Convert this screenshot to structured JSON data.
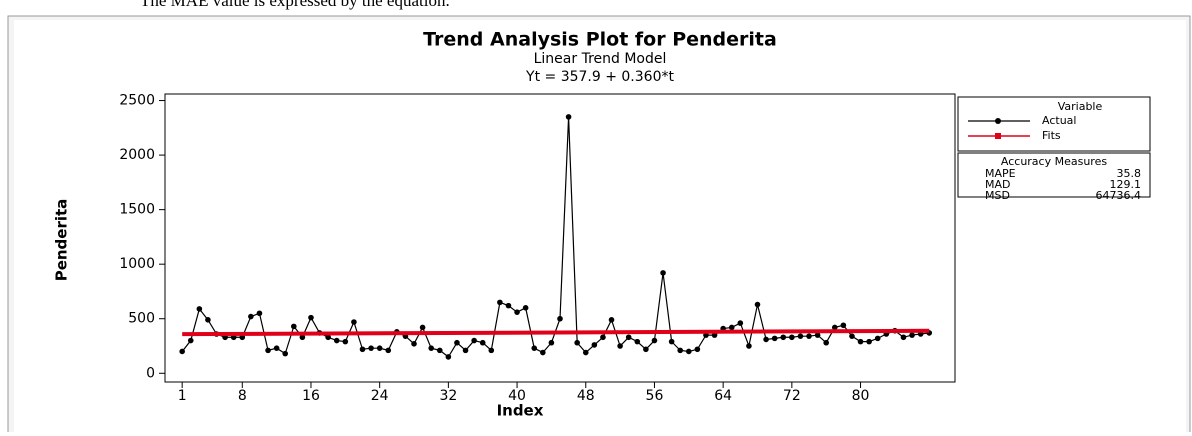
{
  "caption": "The  MAE  value  is  expressed  by  the  equation.",
  "chart_data": {
    "type": "line",
    "title": "Trend Analysis Plot for Penderita",
    "subtitle": "Linear Trend Model",
    "equation": "Yt = 357.9 + 0.360*t",
    "x_label": "Index",
    "y_label": "Penderita",
    "xlim": [
      -1,
      91
    ],
    "ylim": [
      -80,
      2560
    ],
    "xticks": [
      1,
      8,
      16,
      24,
      32,
      40,
      48,
      56,
      64,
      72,
      80
    ],
    "yticks": [
      0,
      500,
      1000,
      1500,
      2000,
      2500
    ],
    "series": [
      {
        "name": "Actual",
        "color": "#000000",
        "x": [
          1,
          2,
          3,
          4,
          5,
          6,
          7,
          8,
          9,
          10,
          11,
          12,
          13,
          14,
          15,
          16,
          17,
          18,
          19,
          20,
          21,
          22,
          23,
          24,
          25,
          26,
          27,
          28,
          29,
          30,
          31,
          32,
          33,
          34,
          35,
          36,
          37,
          38,
          39,
          40,
          41,
          42,
          43,
          44,
          45,
          46,
          47,
          48,
          49,
          50,
          51,
          52,
          53,
          54,
          55,
          56,
          57,
          58,
          59,
          60,
          61,
          62,
          63,
          64,
          65,
          66,
          67,
          68,
          69,
          70,
          71,
          72,
          73,
          74,
          75,
          76,
          77,
          78,
          79,
          80,
          81,
          82,
          83,
          84,
          85,
          86,
          87,
          88
        ],
        "values": [
          200,
          300,
          590,
          490,
          360,
          330,
          330,
          330,
          520,
          550,
          210,
          230,
          180,
          430,
          330,
          510,
          370,
          330,
          300,
          290,
          470,
          220,
          230,
          230,
          210,
          380,
          340,
          270,
          420,
          230,
          210,
          150,
          280,
          210,
          300,
          280,
          210,
          650,
          620,
          560,
          600,
          230,
          190,
          280,
          500,
          2350,
          280,
          190,
          260,
          330,
          490,
          250,
          330,
          290,
          220,
          300,
          920,
          290,
          210,
          200,
          220,
          350,
          350,
          410,
          420,
          460,
          250,
          630,
          310,
          320,
          330,
          330,
          340,
          340,
          350,
          280,
          420,
          440,
          340,
          290,
          290,
          320,
          360,
          390,
          330,
          350,
          360,
          370
        ]
      },
      {
        "name": "Fits",
        "color": "#e0001a",
        "x": [
          1,
          88
        ],
        "values": [
          358.3,
          389.6
        ]
      }
    ],
    "legend_title": "Variable",
    "measures_title": "Accuracy Measures",
    "measures": [
      {
        "name": "MAPE",
        "value": 35.8
      },
      {
        "name": "MAD",
        "value": 129.1
      },
      {
        "name": "MSD",
        "value": 64736.4
      }
    ]
  }
}
